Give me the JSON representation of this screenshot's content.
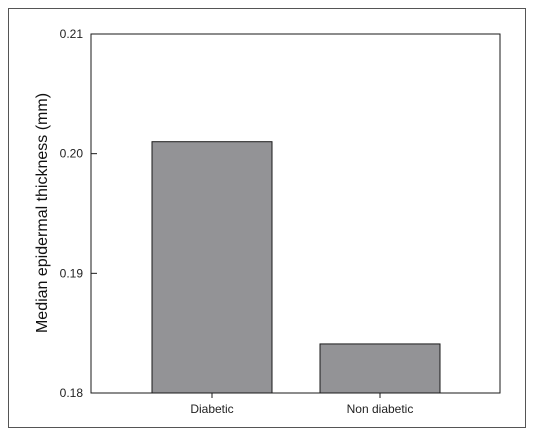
{
  "chart_data": {
    "type": "bar",
    "title": "",
    "xlabel": "",
    "ylabel": "Median epidermal thickness (mm)",
    "categories": [
      "Diabetic",
      "Non diabetic"
    ],
    "values": [
      0.201,
      0.1841
    ],
    "ylim": [
      0.18,
      0.21
    ],
    "yticks": [
      0.18,
      0.19,
      0.2,
      0.21
    ],
    "ytick_labels": [
      "0.18",
      "0.19",
      "0.20",
      "0.21"
    ],
    "grid": false,
    "bar_color": "#939396",
    "bar_edge_color": "#1a1a1a"
  }
}
